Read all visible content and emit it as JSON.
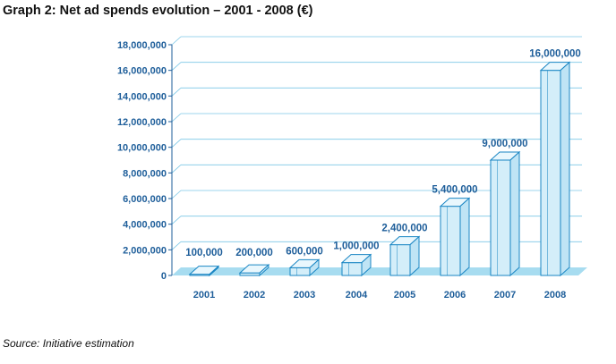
{
  "title": "Graph 2: Net ad spends evolution – 2001 - 2008 (€)",
  "source": "Source: Initiative estimation",
  "colors": {
    "text_blue": "#1e5e9a",
    "bar_fill": "#d4eef9",
    "bar_edge": "#1a86c4",
    "floor": "#a7dcf0",
    "grid": "#7cc7e6",
    "title": "#111111"
  },
  "chart_data": {
    "type": "bar",
    "title": "Graph 2: Net ad spends evolution – 2001 - 2008 (€)",
    "categories": [
      "2001",
      "2002",
      "2003",
      "2004",
      "2005",
      "2006",
      "2007",
      "2008"
    ],
    "values": [
      100000,
      200000,
      600000,
      1000000,
      2400000,
      5400000,
      9000000,
      16000000
    ],
    "data_labels": [
      "100,000",
      "200,000",
      "600,000",
      "1,000,000",
      "2,400,000",
      "5,400,000",
      "9,000,000",
      "16,000,000"
    ],
    "ylim": [
      0,
      18000000
    ],
    "yticks": [
      0,
      2000000,
      4000000,
      6000000,
      8000000,
      10000000,
      12000000,
      14000000,
      16000000,
      18000000
    ],
    "ytick_labels": [
      "0",
      "2,000,000",
      "4,000,000",
      "6,000,000",
      "8,000,000",
      "10,000,000",
      "12,000,000",
      "14,000,000",
      "16,000,000",
      "18,000,000"
    ],
    "xlabel": "",
    "ylabel": "",
    "grid": true,
    "style": "3d-bar"
  }
}
